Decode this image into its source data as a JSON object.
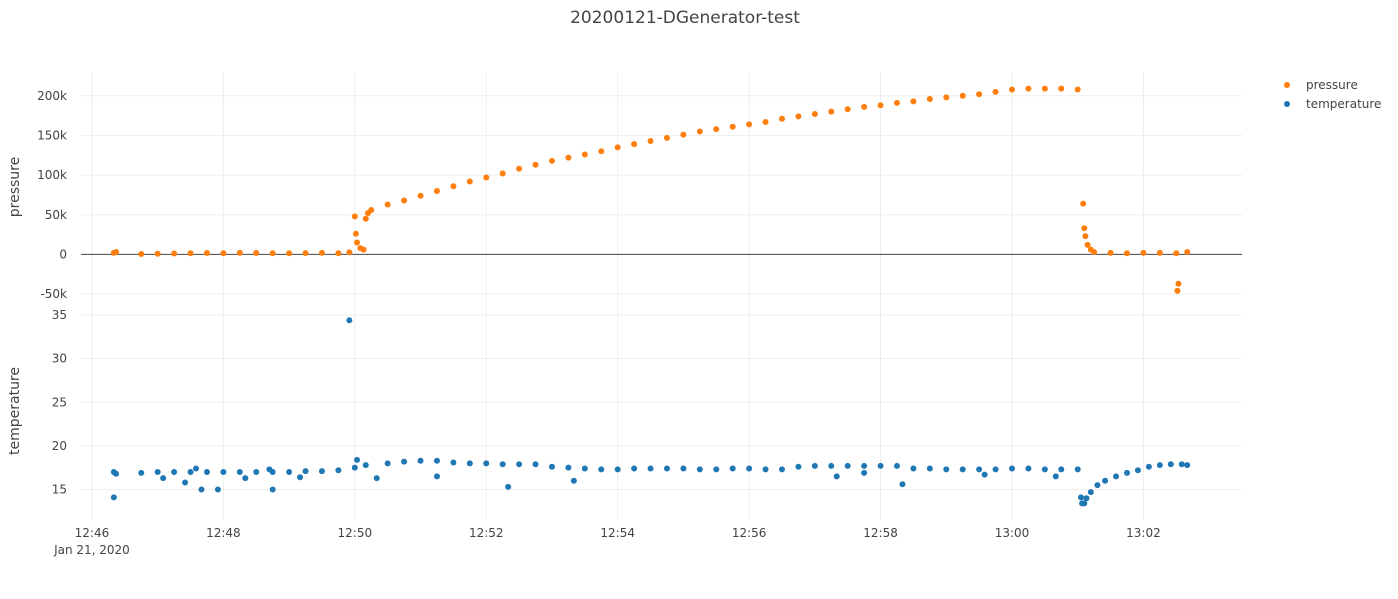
{
  "chart_data": {
    "type": "scatter",
    "title": "20200121-DGenerator-test",
    "xlabel": "",
    "x_range": [
      "2020-01-21 12:45:50",
      "2020-01-21 13:03:30"
    ],
    "x_ticks": [
      {
        "time": "2020-01-21 12:46:00",
        "label": "12:46",
        "sublabel": "Jan 21, 2020"
      },
      {
        "time": "2020-01-21 12:48:00",
        "label": "12:48",
        "sublabel": ""
      },
      {
        "time": "2020-01-21 12:50:00",
        "label": "12:50",
        "sublabel": ""
      },
      {
        "time": "2020-01-21 12:52:00",
        "label": "12:52",
        "sublabel": ""
      },
      {
        "time": "2020-01-21 12:54:00",
        "label": "12:54",
        "sublabel": ""
      },
      {
        "time": "2020-01-21 12:56:00",
        "label": "12:56",
        "sublabel": ""
      },
      {
        "time": "2020-01-21 12:58:00",
        "label": "12:58",
        "sublabel": ""
      },
      {
        "time": "2020-01-21 13:00:00",
        "label": "13:00",
        "sublabel": ""
      },
      {
        "time": "2020-01-21 13:02:00",
        "label": "13:02",
        "sublabel": ""
      }
    ],
    "subplots": [
      {
        "name": "pressure",
        "ylabel": "pressure",
        "ylim": [
          -60000,
          230000
        ],
        "y_ticks": [
          {
            "value": -50000,
            "label": "-50k"
          },
          {
            "value": 0,
            "label": "0"
          },
          {
            "value": 50000,
            "label": "50k"
          },
          {
            "value": 100000,
            "label": "100k"
          },
          {
            "value": 150000,
            "label": "150k"
          },
          {
            "value": 200000,
            "label": "200k"
          }
        ],
        "zero_line": true
      },
      {
        "name": "temperature",
        "ylabel": "temperature",
        "ylim": [
          11.5,
          36.5
        ],
        "y_ticks": [
          {
            "value": 15,
            "label": "15"
          },
          {
            "value": 20,
            "label": "20"
          },
          {
            "value": 25,
            "label": "25"
          },
          {
            "value": 30,
            "label": "30"
          },
          {
            "value": 35,
            "label": "35"
          }
        ],
        "zero_line": false
      }
    ],
    "series": [
      {
        "name": "pressure",
        "subplot": 0,
        "color": "#ff7f0e",
        "points": [
          [
            "2020-01-21 12:46:20",
            2000
          ],
          [
            "2020-01-21 12:46:22",
            3000
          ],
          [
            "2020-01-21 12:46:45",
            500
          ],
          [
            "2020-01-21 12:47:00",
            800
          ],
          [
            "2020-01-21 12:47:15",
            1200
          ],
          [
            "2020-01-21 12:47:30",
            1500
          ],
          [
            "2020-01-21 12:47:45",
            1800
          ],
          [
            "2020-01-21 12:48:00",
            1500
          ],
          [
            "2020-01-21 12:48:15",
            2000
          ],
          [
            "2020-01-21 12:48:30",
            1800
          ],
          [
            "2020-01-21 12:48:45",
            1500
          ],
          [
            "2020-01-21 12:49:00",
            1500
          ],
          [
            "2020-01-21 12:49:15",
            1700
          ],
          [
            "2020-01-21 12:49:30",
            2000
          ],
          [
            "2020-01-21 12:49:45",
            1500
          ],
          [
            "2020-01-21 12:49:55",
            2500
          ],
          [
            "2020-01-21 12:50:00",
            48000
          ],
          [
            "2020-01-21 12:50:01",
            26000
          ],
          [
            "2020-01-21 12:50:02",
            15000
          ],
          [
            "2020-01-21 12:50:05",
            8000
          ],
          [
            "2020-01-21 12:50:08",
            6000
          ],
          [
            "2020-01-21 12:50:10",
            45000
          ],
          [
            "2020-01-21 12:50:12",
            52000
          ],
          [
            "2020-01-21 12:50:15",
            56000
          ],
          [
            "2020-01-21 12:50:30",
            63000
          ],
          [
            "2020-01-21 12:50:45",
            68000
          ],
          [
            "2020-01-21 12:51:00",
            74000
          ],
          [
            "2020-01-21 12:51:15",
            80000
          ],
          [
            "2020-01-21 12:51:30",
            86000
          ],
          [
            "2020-01-21 12:51:45",
            92000
          ],
          [
            "2020-01-21 12:52:00",
            97000
          ],
          [
            "2020-01-21 12:52:15",
            102000
          ],
          [
            "2020-01-21 12:52:30",
            108000
          ],
          [
            "2020-01-21 12:52:45",
            113000
          ],
          [
            "2020-01-21 12:53:00",
            118000
          ],
          [
            "2020-01-21 12:53:15",
            122000
          ],
          [
            "2020-01-21 12:53:30",
            126000
          ],
          [
            "2020-01-21 12:53:45",
            130000
          ],
          [
            "2020-01-21 12:54:00",
            135000
          ],
          [
            "2020-01-21 12:54:15",
            139000
          ],
          [
            "2020-01-21 12:54:30",
            143000
          ],
          [
            "2020-01-21 12:54:45",
            147000
          ],
          [
            "2020-01-21 12:55:00",
            151000
          ],
          [
            "2020-01-21 12:55:15",
            155000
          ],
          [
            "2020-01-21 12:55:30",
            158000
          ],
          [
            "2020-01-21 12:55:45",
            161000
          ],
          [
            "2020-01-21 12:56:00",
            164000
          ],
          [
            "2020-01-21 12:56:15",
            167000
          ],
          [
            "2020-01-21 12:56:30",
            171000
          ],
          [
            "2020-01-21 12:56:45",
            174000
          ],
          [
            "2020-01-21 12:57:00",
            177000
          ],
          [
            "2020-01-21 12:57:15",
            180000
          ],
          [
            "2020-01-21 12:57:30",
            183000
          ],
          [
            "2020-01-21 12:57:45",
            186000
          ],
          [
            "2020-01-21 12:58:00",
            188000
          ],
          [
            "2020-01-21 12:58:15",
            191000
          ],
          [
            "2020-01-21 12:58:30",
            193000
          ],
          [
            "2020-01-21 12:58:45",
            196000
          ],
          [
            "2020-01-21 12:59:00",
            198000
          ],
          [
            "2020-01-21 12:59:15",
            200000
          ],
          [
            "2020-01-21 12:59:30",
            202000
          ],
          [
            "2020-01-21 12:59:45",
            205000
          ],
          [
            "2020-01-21 13:00:00",
            208000
          ],
          [
            "2020-01-21 13:00:15",
            209000
          ],
          [
            "2020-01-21 13:00:30",
            209000
          ],
          [
            "2020-01-21 13:00:45",
            209000
          ],
          [
            "2020-01-21 13:01:00",
            208000
          ],
          [
            "2020-01-21 13:01:05",
            64000
          ],
          [
            "2020-01-21 13:01:06",
            33000
          ],
          [
            "2020-01-21 13:01:07",
            23000
          ],
          [
            "2020-01-21 13:01:09",
            12000
          ],
          [
            "2020-01-21 13:01:12",
            6000
          ],
          [
            "2020-01-21 13:01:15",
            3000
          ],
          [
            "2020-01-21 13:01:30",
            2000
          ],
          [
            "2020-01-21 13:01:45",
            1500
          ],
          [
            "2020-01-21 13:02:00",
            2000
          ],
          [
            "2020-01-21 13:02:15",
            2000
          ],
          [
            "2020-01-21 13:02:30",
            1500
          ],
          [
            "2020-01-21 13:02:32",
            -37000
          ],
          [
            "2020-01-21 13:02:31",
            -46000
          ],
          [
            "2020-01-21 13:02:40",
            3000
          ]
        ]
      },
      {
        "name": "temperature",
        "subplot": 1,
        "color": "#1f77b4",
        "points": [
          [
            "2020-01-21 12:46:20",
            17.0
          ],
          [
            "2020-01-21 12:46:22",
            16.8
          ],
          [
            "2020-01-21 12:46:20",
            14.1
          ],
          [
            "2020-01-21 12:46:45",
            16.9
          ],
          [
            "2020-01-21 12:47:00",
            17.0
          ],
          [
            "2020-01-21 12:47:15",
            17.0
          ],
          [
            "2020-01-21 12:47:30",
            17.0
          ],
          [
            "2020-01-21 12:47:45",
            17.0
          ],
          [
            "2020-01-21 12:48:00",
            17.0
          ],
          [
            "2020-01-21 12:48:15",
            17.0
          ],
          [
            "2020-01-21 12:48:30",
            17.0
          ],
          [
            "2020-01-21 12:48:45",
            17.0
          ],
          [
            "2020-01-21 12:49:00",
            17.0
          ],
          [
            "2020-01-21 12:49:15",
            17.1
          ],
          [
            "2020-01-21 12:49:30",
            17.1
          ],
          [
            "2020-01-21 12:49:45",
            17.2
          ],
          [
            "2020-01-21 12:50:00",
            17.5
          ],
          [
            "2020-01-21 12:47:05",
            16.3
          ],
          [
            "2020-01-21 12:47:25",
            15.8
          ],
          [
            "2020-01-21 12:47:35",
            17.4
          ],
          [
            "2020-01-21 12:47:40",
            15.0
          ],
          [
            "2020-01-21 12:47:55",
            15.0
          ],
          [
            "2020-01-21 12:48:20",
            16.3
          ],
          [
            "2020-01-21 12:48:45",
            15.0
          ],
          [
            "2020-01-21 12:48:42",
            17.3
          ],
          [
            "2020-01-21 12:49:10",
            16.4
          ],
          [
            "2020-01-21 12:49:55",
            34.4
          ],
          [
            "2020-01-21 12:50:20",
            16.3
          ],
          [
            "2020-01-21 12:50:02",
            18.4
          ],
          [
            "2020-01-21 12:50:10",
            17.8
          ],
          [
            "2020-01-21 12:50:30",
            18.0
          ],
          [
            "2020-01-21 12:50:45",
            18.2
          ],
          [
            "2020-01-21 12:51:00",
            18.3
          ],
          [
            "2020-01-21 12:51:15",
            18.3
          ],
          [
            "2020-01-21 12:51:30",
            18.1
          ],
          [
            "2020-01-21 12:51:45",
            18.0
          ],
          [
            "2020-01-21 12:52:00",
            18.0
          ],
          [
            "2020-01-21 12:52:15",
            17.9
          ],
          [
            "2020-01-21 12:52:30",
            17.9
          ],
          [
            "2020-01-21 12:52:45",
            17.9
          ],
          [
            "2020-01-21 12:53:00",
            17.6
          ],
          [
            "2020-01-21 12:53:15",
            17.5
          ],
          [
            "2020-01-21 12:53:30",
            17.4
          ],
          [
            "2020-01-21 12:53:45",
            17.3
          ],
          [
            "2020-01-21 12:54:00",
            17.3
          ],
          [
            "2020-01-21 12:54:15",
            17.4
          ],
          [
            "2020-01-21 12:54:30",
            17.4
          ],
          [
            "2020-01-21 12:54:45",
            17.4
          ],
          [
            "2020-01-21 12:55:00",
            17.4
          ],
          [
            "2020-01-21 12:55:15",
            17.3
          ],
          [
            "2020-01-21 12:55:30",
            17.3
          ],
          [
            "2020-01-21 12:55:45",
            17.4
          ],
          [
            "2020-01-21 12:56:00",
            17.4
          ],
          [
            "2020-01-21 12:56:15",
            17.3
          ],
          [
            "2020-01-21 12:56:30",
            17.3
          ],
          [
            "2020-01-21 12:56:45",
            17.6
          ],
          [
            "2020-01-21 12:57:00",
            17.7
          ],
          [
            "2020-01-21 12:57:15",
            17.7
          ],
          [
            "2020-01-21 12:57:30",
            17.7
          ],
          [
            "2020-01-21 12:57:45",
            17.7
          ],
          [
            "2020-01-21 12:58:00",
            17.7
          ],
          [
            "2020-01-21 12:58:15",
            17.7
          ],
          [
            "2020-01-21 12:58:30",
            17.4
          ],
          [
            "2020-01-21 12:58:45",
            17.4
          ],
          [
            "2020-01-21 12:59:00",
            17.3
          ],
          [
            "2020-01-21 12:59:15",
            17.3
          ],
          [
            "2020-01-21 12:59:30",
            17.3
          ],
          [
            "2020-01-21 12:59:45",
            17.3
          ],
          [
            "2020-01-21 13:00:00",
            17.4
          ],
          [
            "2020-01-21 13:00:15",
            17.4
          ],
          [
            "2020-01-21 13:00:30",
            17.3
          ],
          [
            "2020-01-21 13:00:45",
            17.3
          ],
          [
            "2020-01-21 13:01:00",
            17.3
          ],
          [
            "2020-01-21 12:51:15",
            16.5
          ],
          [
            "2020-01-21 12:52:20",
            15.3
          ],
          [
            "2020-01-21 12:53:20",
            16.0
          ],
          [
            "2020-01-21 12:57:20",
            16.5
          ],
          [
            "2020-01-21 12:57:45",
            16.9
          ],
          [
            "2020-01-21 12:58:20",
            15.6
          ],
          [
            "2020-01-21 12:59:35",
            16.7
          ],
          [
            "2020-01-21 13:00:40",
            16.5
          ],
          [
            "2020-01-21 13:01:03",
            14.1
          ],
          [
            "2020-01-21 13:01:04",
            13.4
          ],
          [
            "2020-01-21 13:01:06",
            13.4
          ],
          [
            "2020-01-21 13:01:08",
            14.0
          ],
          [
            "2020-01-21 13:01:12",
            14.7
          ],
          [
            "2020-01-21 13:01:18",
            15.5
          ],
          [
            "2020-01-21 13:01:25",
            16.0
          ],
          [
            "2020-01-21 13:01:35",
            16.5
          ],
          [
            "2020-01-21 13:01:45",
            16.9
          ],
          [
            "2020-01-21 13:01:55",
            17.2
          ],
          [
            "2020-01-21 13:02:05",
            17.6
          ],
          [
            "2020-01-21 13:02:15",
            17.8
          ],
          [
            "2020-01-21 13:02:25",
            17.9
          ],
          [
            "2020-01-21 13:02:35",
            17.9
          ],
          [
            "2020-01-21 13:02:40",
            17.8
          ]
        ]
      }
    ],
    "grid": true,
    "legend": {
      "placement": "top-right",
      "items": [
        "pressure",
        "temperature"
      ]
    }
  }
}
